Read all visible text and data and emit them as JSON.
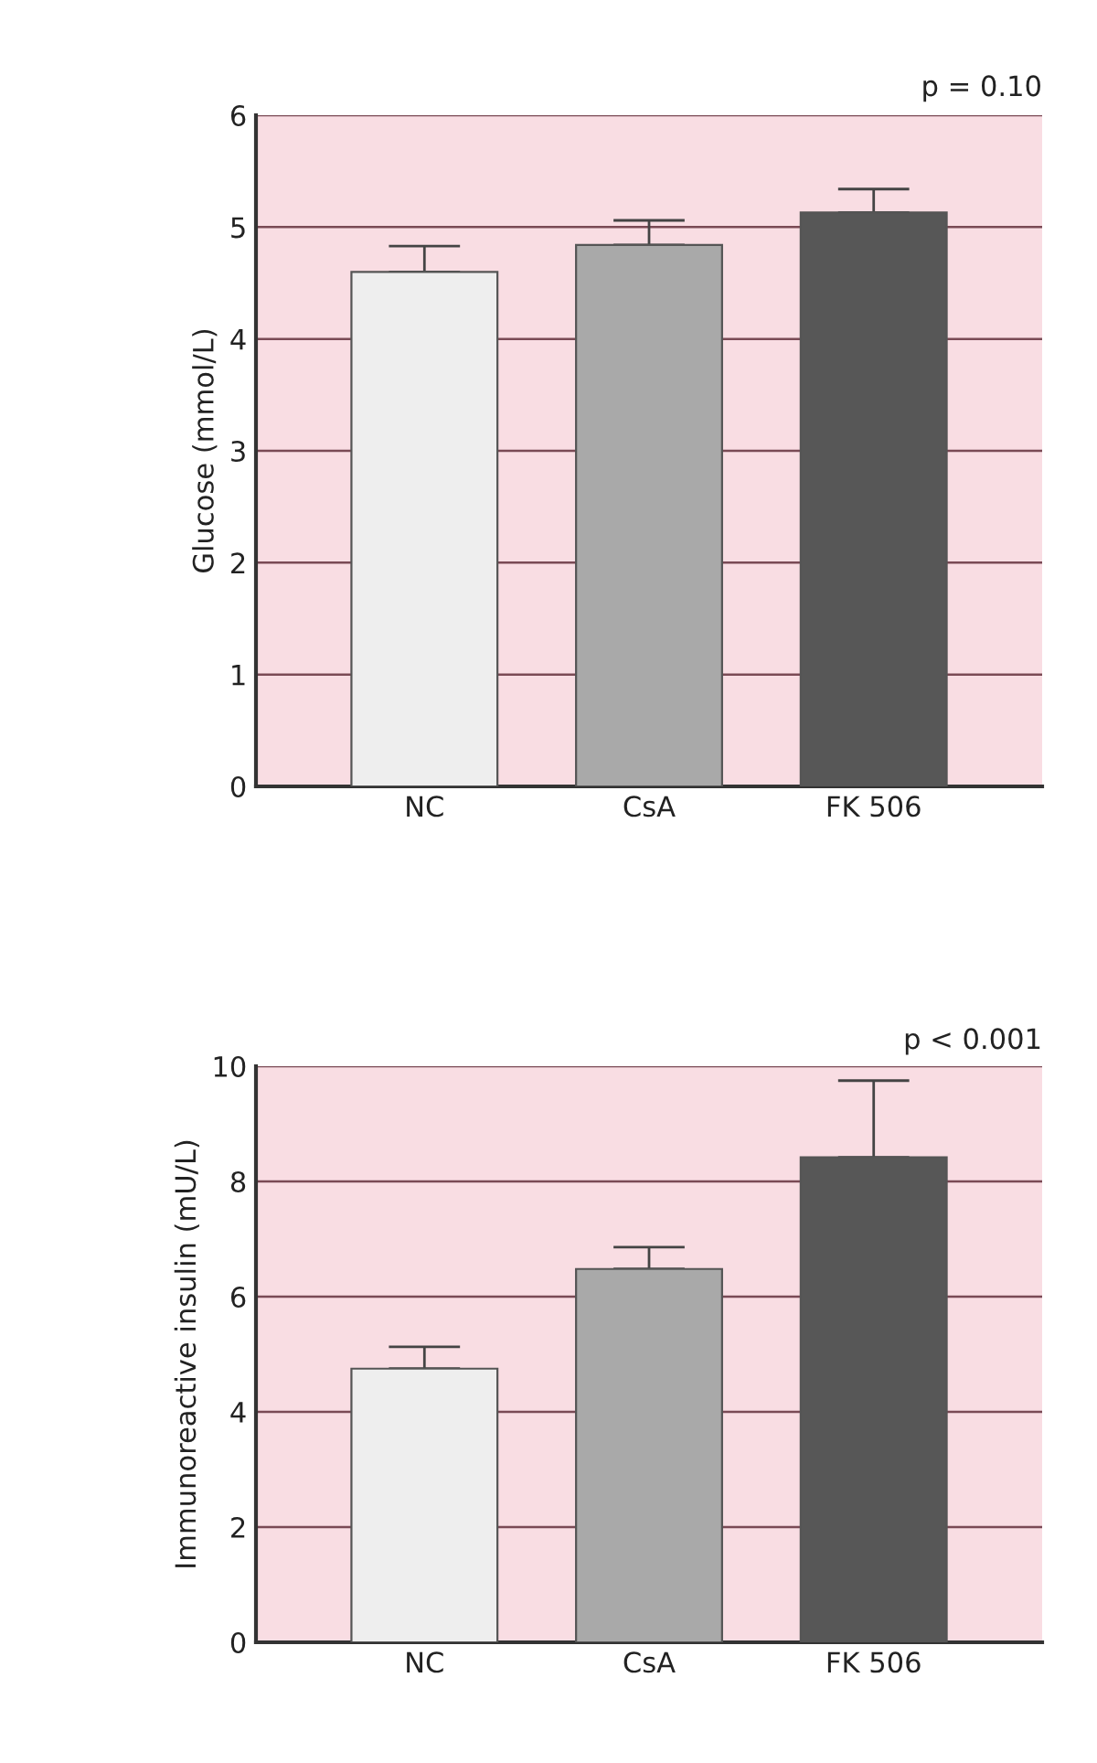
{
  "chart_data": [
    {
      "type": "bar",
      "categories": [
        "NC",
        "CsA",
        "FK 506"
      ],
      "values": [
        4.6,
        4.84,
        5.13
      ],
      "errors": [
        [
          4.6,
          4.83
        ],
        [
          4.84,
          5.06
        ],
        [
          5.13,
          5.34
        ]
      ],
      "colors": [
        "#eeeeee",
        "#a9a9a9",
        "#575757"
      ],
      "ylabel": "Glucose (mmol/L)",
      "ylim": [
        0,
        6
      ],
      "yticks": [
        0,
        1,
        2,
        3,
        4,
        5,
        6
      ],
      "grid": "y",
      "annotations": [
        "p = 0.10"
      ]
    },
    {
      "type": "bar",
      "categories": [
        "NC",
        "CsA",
        "FK 506"
      ],
      "values": [
        4.75,
        6.48,
        8.42
      ],
      "errors": [
        [
          4.75,
          5.13
        ],
        [
          6.48,
          6.86
        ],
        [
          8.42,
          9.75
        ]
      ],
      "colors": [
        "#eeeeee",
        "#a9a9a9",
        "#575757"
      ],
      "ylabel": "Immunoreactive insulin (mU/L)",
      "ylim": [
        0,
        10
      ],
      "yticks": [
        0,
        2,
        4,
        6,
        8,
        10
      ],
      "grid": "y",
      "annotations": [
        "p < 0.001"
      ]
    }
  ]
}
